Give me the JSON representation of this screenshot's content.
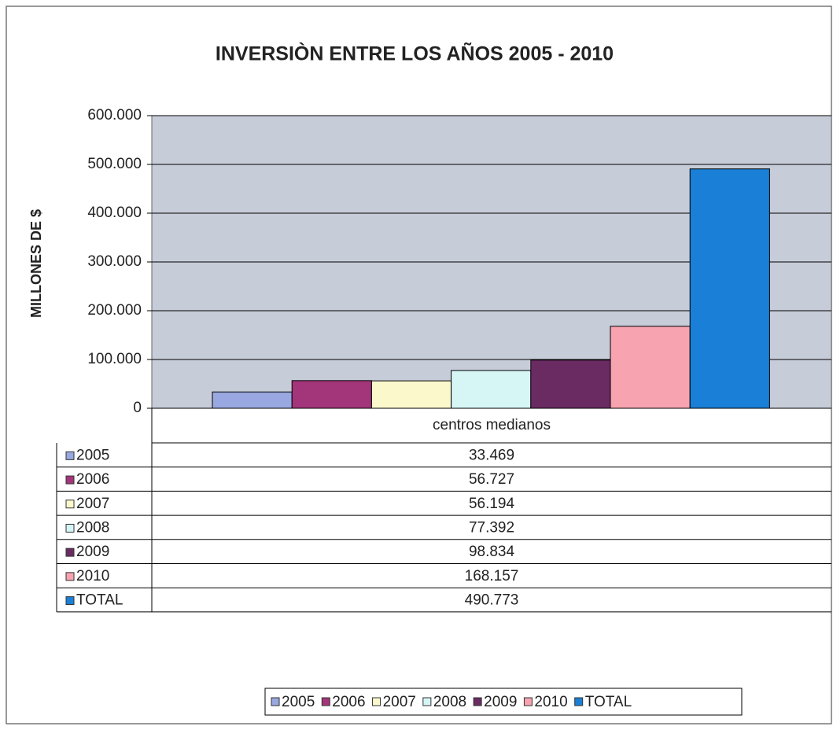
{
  "chart_data": {
    "type": "bar",
    "title": "INVERSIÒN ENTRE LOS AÑOS 2005 - 2010",
    "y_label": "MILLONES DE $",
    "categories": [
      "centros medianos"
    ],
    "series": [
      {
        "name": "2005",
        "color": "#99a8e0",
        "values": [
          33469
        ],
        "value_labels": [
          "33.469"
        ]
      },
      {
        "name": "2006",
        "color": "#a3357a",
        "values": [
          56727
        ],
        "value_labels": [
          "56.727"
        ]
      },
      {
        "name": "2007",
        "color": "#fbf8cc",
        "values": [
          56194
        ],
        "value_labels": [
          "56.194"
        ]
      },
      {
        "name": "2008",
        "color": "#d6f6f6",
        "values": [
          77392
        ],
        "value_labels": [
          "77.392"
        ]
      },
      {
        "name": "2009",
        "color": "#6a2b63",
        "values": [
          98834
        ],
        "value_labels": [
          "98.834"
        ]
      },
      {
        "name": "2010",
        "color": "#f7a3b0",
        "values": [
          168157
        ],
        "value_labels": [
          "168.157"
        ]
      },
      {
        "name": "TOTAL",
        "color": "#1a7fd6",
        "values": [
          490773
        ],
        "value_labels": [
          "490.773"
        ]
      }
    ],
    "ylim": [
      0,
      600000
    ],
    "yticks": [
      0,
      {
        "value": 100000,
        "label": "100.000"
      },
      {
        "value": 200000,
        "label": "200.000"
      },
      {
        "value": 300000,
        "label": "300.000"
      },
      {
        "value": 400000,
        "label": "400.000"
      },
      {
        "value": 500000,
        "label": "500.000"
      },
      {
        "value": 600000,
        "label": "600.000"
      }
    ],
    "grid": true,
    "legend": "bottom"
  }
}
